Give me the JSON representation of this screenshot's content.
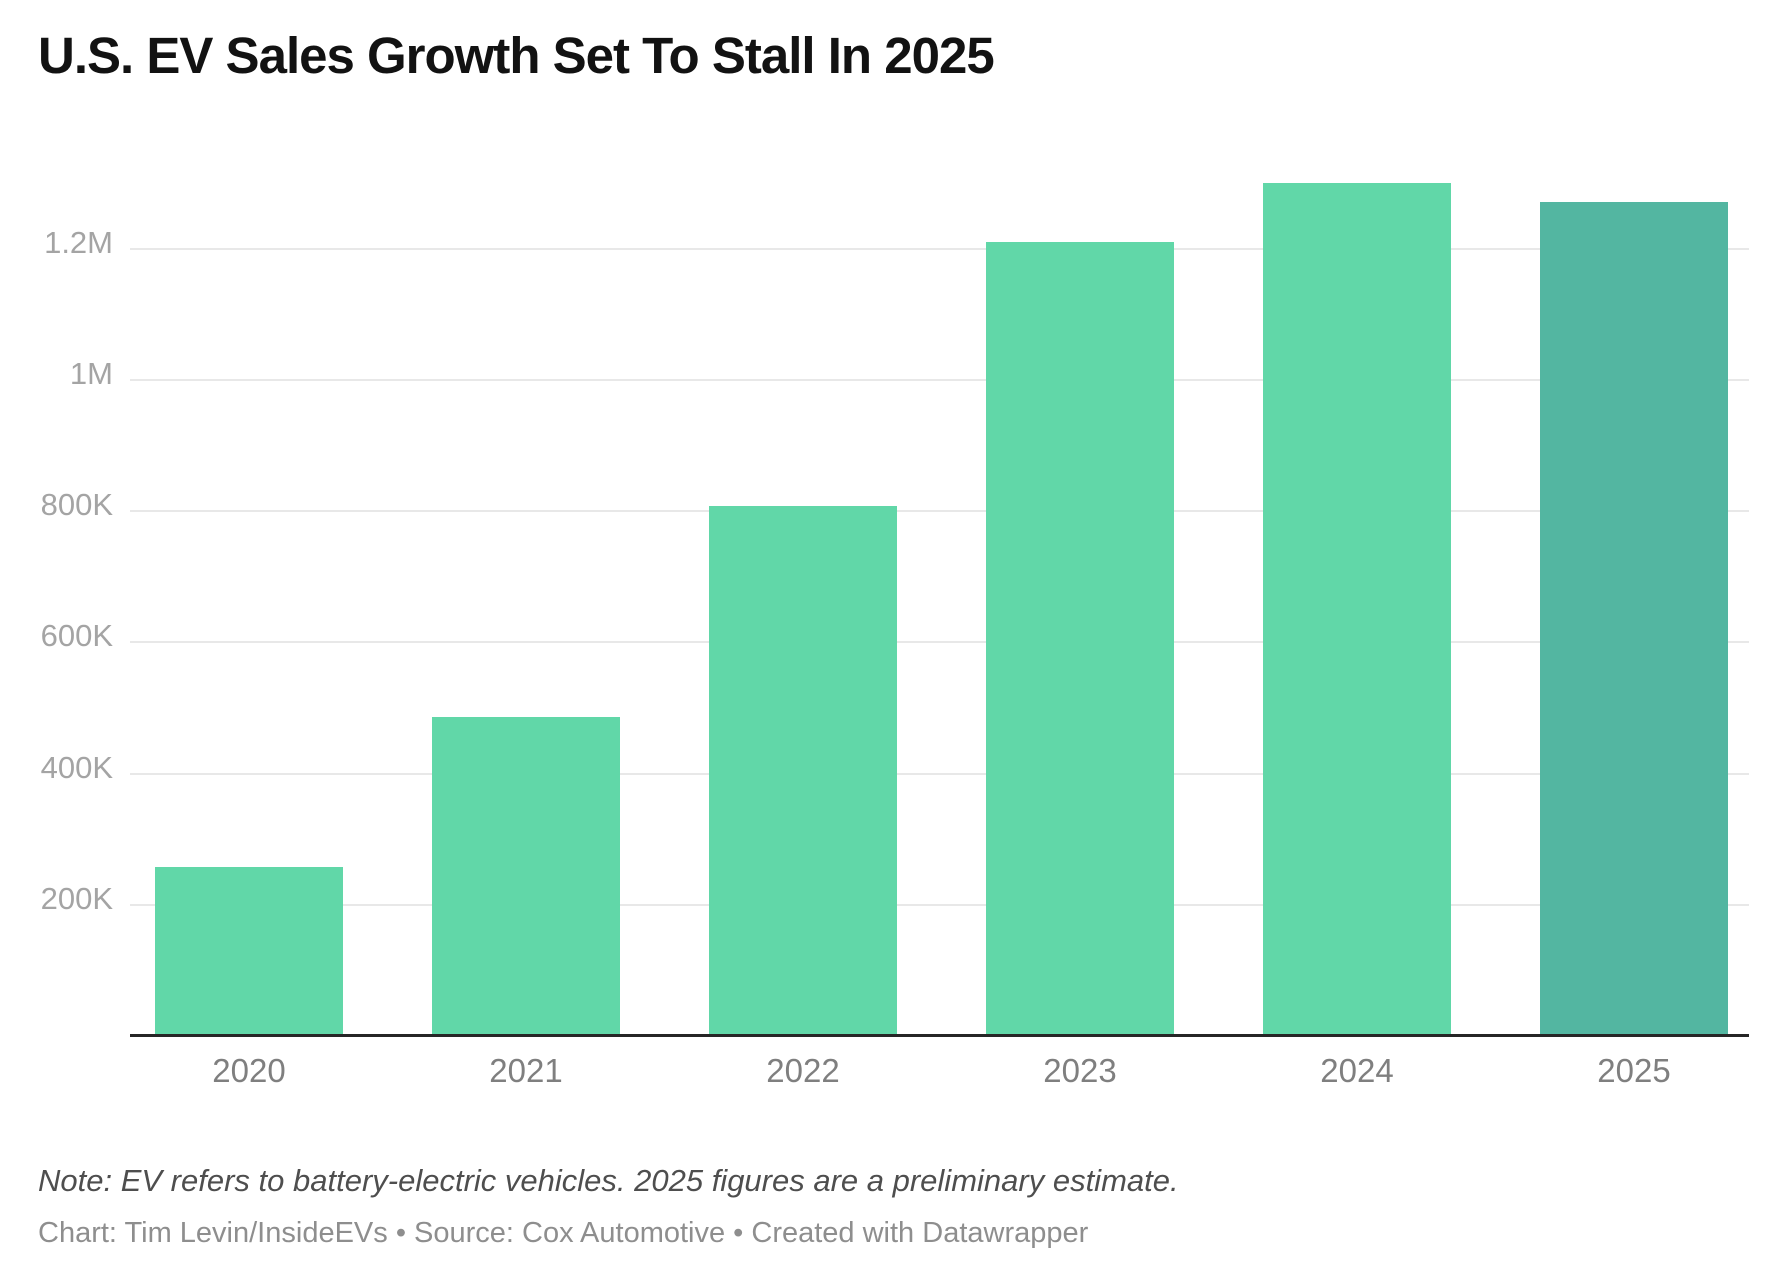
{
  "title": "U.S. EV Sales Growth Set To Stall In 2025",
  "footer": {
    "note": "Note: EV refers to battery-electric vehicles. 2025 figures are a preliminary estimate.",
    "credit": "Chart: Tim Levin/InsideEVs • Source: Cox Automotive • Created with Datawrapper"
  },
  "colors": {
    "bar": "#61d7a8",
    "bar_highlight": "#53b6a1",
    "gridline": "#e8e8e8",
    "axis": "#262626",
    "title_text": "#121212",
    "y_tick_text": "#a4a4a4",
    "x_tick_text": "#7f7f7f",
    "note_text": "#4e4e4e",
    "credit_text": "#8e8e8e",
    "background": "#ffffff"
  },
  "chart_data": {
    "type": "bar",
    "title": "U.S. EV Sales Growth Set To Stall In 2025",
    "categories": [
      "2020",
      "2021",
      "2022",
      "2023",
      "2024",
      "2025"
    ],
    "values": [
      258000,
      487000,
      808000,
      1211000,
      1300000,
      1272000
    ],
    "highlight_index": 5,
    "highlight_category": "2025",
    "y_ticks": [
      {
        "label": "200K",
        "value": 200000
      },
      {
        "label": "400K",
        "value": 400000
      },
      {
        "label": "600K",
        "value": 600000
      },
      {
        "label": "800K",
        "value": 800000
      },
      {
        "label": "1M",
        "value": 1000000
      },
      {
        "label": "1.2M",
        "value": 1200000
      }
    ],
    "xlabel": "",
    "ylabel": "",
    "ylim": [
      0,
      1370000
    ],
    "grid": true,
    "legend": false,
    "note": "Note: EV refers to battery-electric vehicles. 2025 figures are a preliminary estimate.",
    "source": "Cox Automotive",
    "chart_author": "Tim Levin/InsideEVs",
    "tool": "Datawrapper"
  }
}
